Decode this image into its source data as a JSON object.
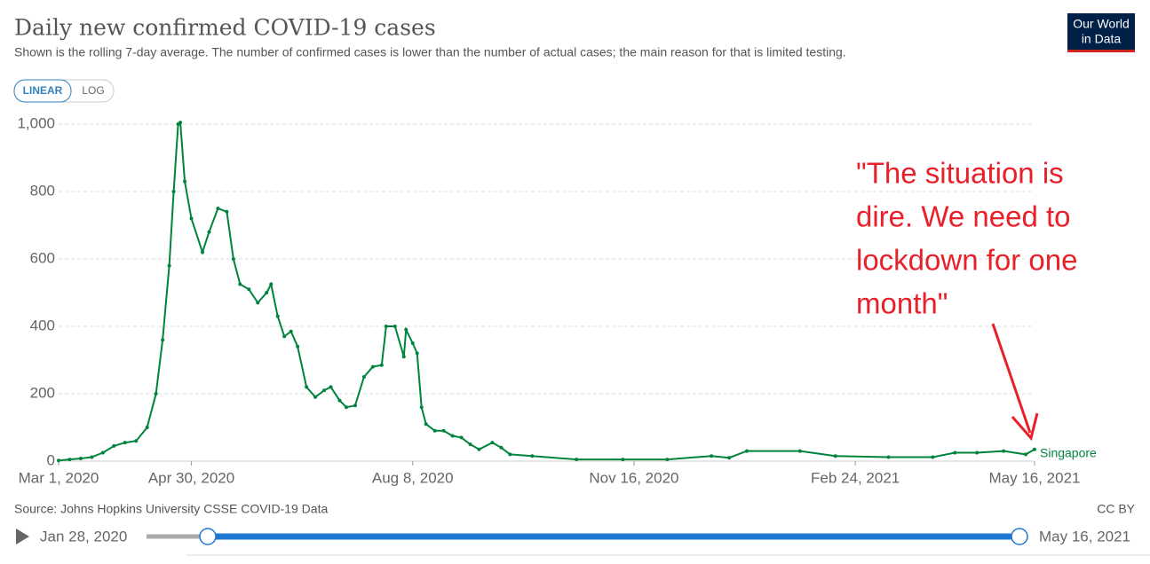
{
  "header": {
    "title": "Daily new confirmed COVID-19 cases",
    "subtitle": "Shown is the rolling 7-day average. The number of confirmed cases is lower than the number of actual cases; the main reason for that is limited testing.",
    "logo": [
      "Our World",
      "in Data"
    ],
    "buttons": [
      "LINEAR",
      "LOG"
    ]
  },
  "chart_data": {
    "type": "line",
    "x": [
      "2020-03-01",
      "2020-03-06",
      "2020-03-11",
      "2020-03-16",
      "2020-03-21",
      "2020-03-26",
      "2020-03-31",
      "2020-04-05",
      "2020-04-10",
      "2020-04-14",
      "2020-04-17",
      "2020-04-20",
      "2020-04-22",
      "2020-04-24",
      "2020-04-25",
      "2020-04-27",
      "2020-04-30",
      "2020-05-05",
      "2020-05-08",
      "2020-05-12",
      "2020-05-16",
      "2020-05-19",
      "2020-05-22",
      "2020-05-26",
      "2020-05-30",
      "2020-06-03",
      "2020-06-05",
      "2020-06-08",
      "2020-06-11",
      "2020-06-14",
      "2020-06-17",
      "2020-06-21",
      "2020-06-25",
      "2020-06-29",
      "2020-07-02",
      "2020-07-06",
      "2020-07-09",
      "2020-07-13",
      "2020-07-17",
      "2020-07-21",
      "2020-07-25",
      "2020-07-27",
      "2020-07-31",
      "2020-08-04",
      "2020-08-05",
      "2020-08-08",
      "2020-08-10",
      "2020-08-12",
      "2020-08-14",
      "2020-08-18",
      "2020-08-22",
      "2020-08-26",
      "2020-08-30",
      "2020-09-03",
      "2020-09-07",
      "2020-09-13",
      "2020-09-17",
      "2020-09-21",
      "2020-10-01",
      "2020-10-21",
      "2020-11-11",
      "2020-12-01",
      "2020-12-21",
      "2020-12-29",
      "2021-01-06",
      "2021-01-30",
      "2021-02-15",
      "2021-03-11",
      "2021-03-31",
      "2021-04-10",
      "2021-04-20",
      "2021-05-02",
      "2021-05-12",
      "2021-05-16"
    ],
    "series": [
      {
        "name": "Singapore",
        "color": "#00843d",
        "values": [
          2,
          5,
          8,
          12,
          25,
          45,
          55,
          60,
          100,
          200,
          360,
          580,
          800,
          1000,
          1005,
          830,
          720,
          620,
          680,
          750,
          740,
          600,
          525,
          510,
          470,
          500,
          525,
          430,
          370,
          385,
          340,
          220,
          190,
          210,
          220,
          180,
          160,
          165,
          250,
          280,
          285,
          400,
          400,
          310,
          390,
          350,
          320,
          160,
          110,
          90,
          90,
          75,
          70,
          50,
          35,
          55,
          40,
          20,
          15,
          5,
          5,
          5,
          15,
          10,
          30,
          30,
          15,
          12,
          12,
          25,
          25,
          30,
          20,
          35
        ]
      }
    ],
    "xlim": [
      "2020-03-01",
      "2021-05-16"
    ],
    "xticks": [
      {
        "value": "2020-03-01",
        "label": "Mar 1, 2020"
      },
      {
        "value": "2020-04-30",
        "label": "Apr 30, 2020"
      },
      {
        "value": "2020-08-08",
        "label": "Aug 8, 2020"
      },
      {
        "value": "2020-11-16",
        "label": "Nov 16, 2020"
      },
      {
        "value": "2021-02-24",
        "label": "Feb 24, 2021"
      },
      {
        "value": "2021-05-16",
        "label": "May 16, 2021"
      }
    ],
    "ylim": [
      0,
      1000
    ],
    "yticks": [
      0,
      200,
      400,
      600,
      800,
      {
        "value": 1000,
        "label": "1,000"
      }
    ],
    "grid": true,
    "annotation": [
      "\"The situation is",
      "dire. We need to",
      "lockdown for one",
      "month\""
    ]
  },
  "footer": {
    "source": "Source: Johns Hopkins University CSSE COVID-19 Data",
    "license": "CC BY",
    "start": "Jan 28, 2020",
    "end": "May 16, 2021"
  }
}
